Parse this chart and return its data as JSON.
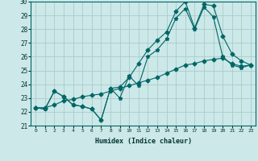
{
  "title": "",
  "xlabel": "Humidex (Indice chaleur)",
  "bg_color": "#cce8e8",
  "line_color": "#006666",
  "grid_color": "#aacccc",
  "xlim": [
    -0.5,
    23.5
  ],
  "ylim": [
    21,
    30
  ],
  "xticks": [
    0,
    1,
    2,
    3,
    4,
    5,
    6,
    7,
    8,
    9,
    10,
    11,
    12,
    13,
    14,
    15,
    16,
    17,
    18,
    19,
    20,
    21,
    22,
    23
  ],
  "yticks": [
    21,
    22,
    23,
    24,
    25,
    26,
    27,
    28,
    29,
    30
  ],
  "line1_y": [
    22.3,
    22.2,
    23.5,
    23.1,
    22.5,
    22.4,
    22.2,
    21.4,
    23.7,
    23.0,
    24.6,
    23.9,
    26.0,
    26.5,
    27.3,
    28.8,
    29.5,
    28.0,
    29.6,
    28.9,
    26.0,
    25.4,
    25.2,
    25.4
  ],
  "line2_y": [
    22.3,
    22.2,
    23.5,
    23.1,
    22.5,
    22.4,
    22.2,
    21.4,
    23.7,
    23.8,
    24.5,
    25.5,
    26.5,
    27.2,
    27.8,
    29.3,
    30.0,
    28.1,
    29.8,
    29.7,
    27.5,
    26.2,
    25.7,
    25.4
  ],
  "line3_y": [
    22.3,
    22.3,
    22.5,
    22.8,
    22.9,
    23.1,
    23.2,
    23.3,
    23.5,
    23.7,
    23.9,
    24.1,
    24.3,
    24.5,
    24.8,
    25.1,
    25.4,
    25.5,
    25.7,
    25.8,
    25.9,
    25.5,
    25.3,
    25.4
  ],
  "markersize": 2.5,
  "linewidth": 0.8
}
